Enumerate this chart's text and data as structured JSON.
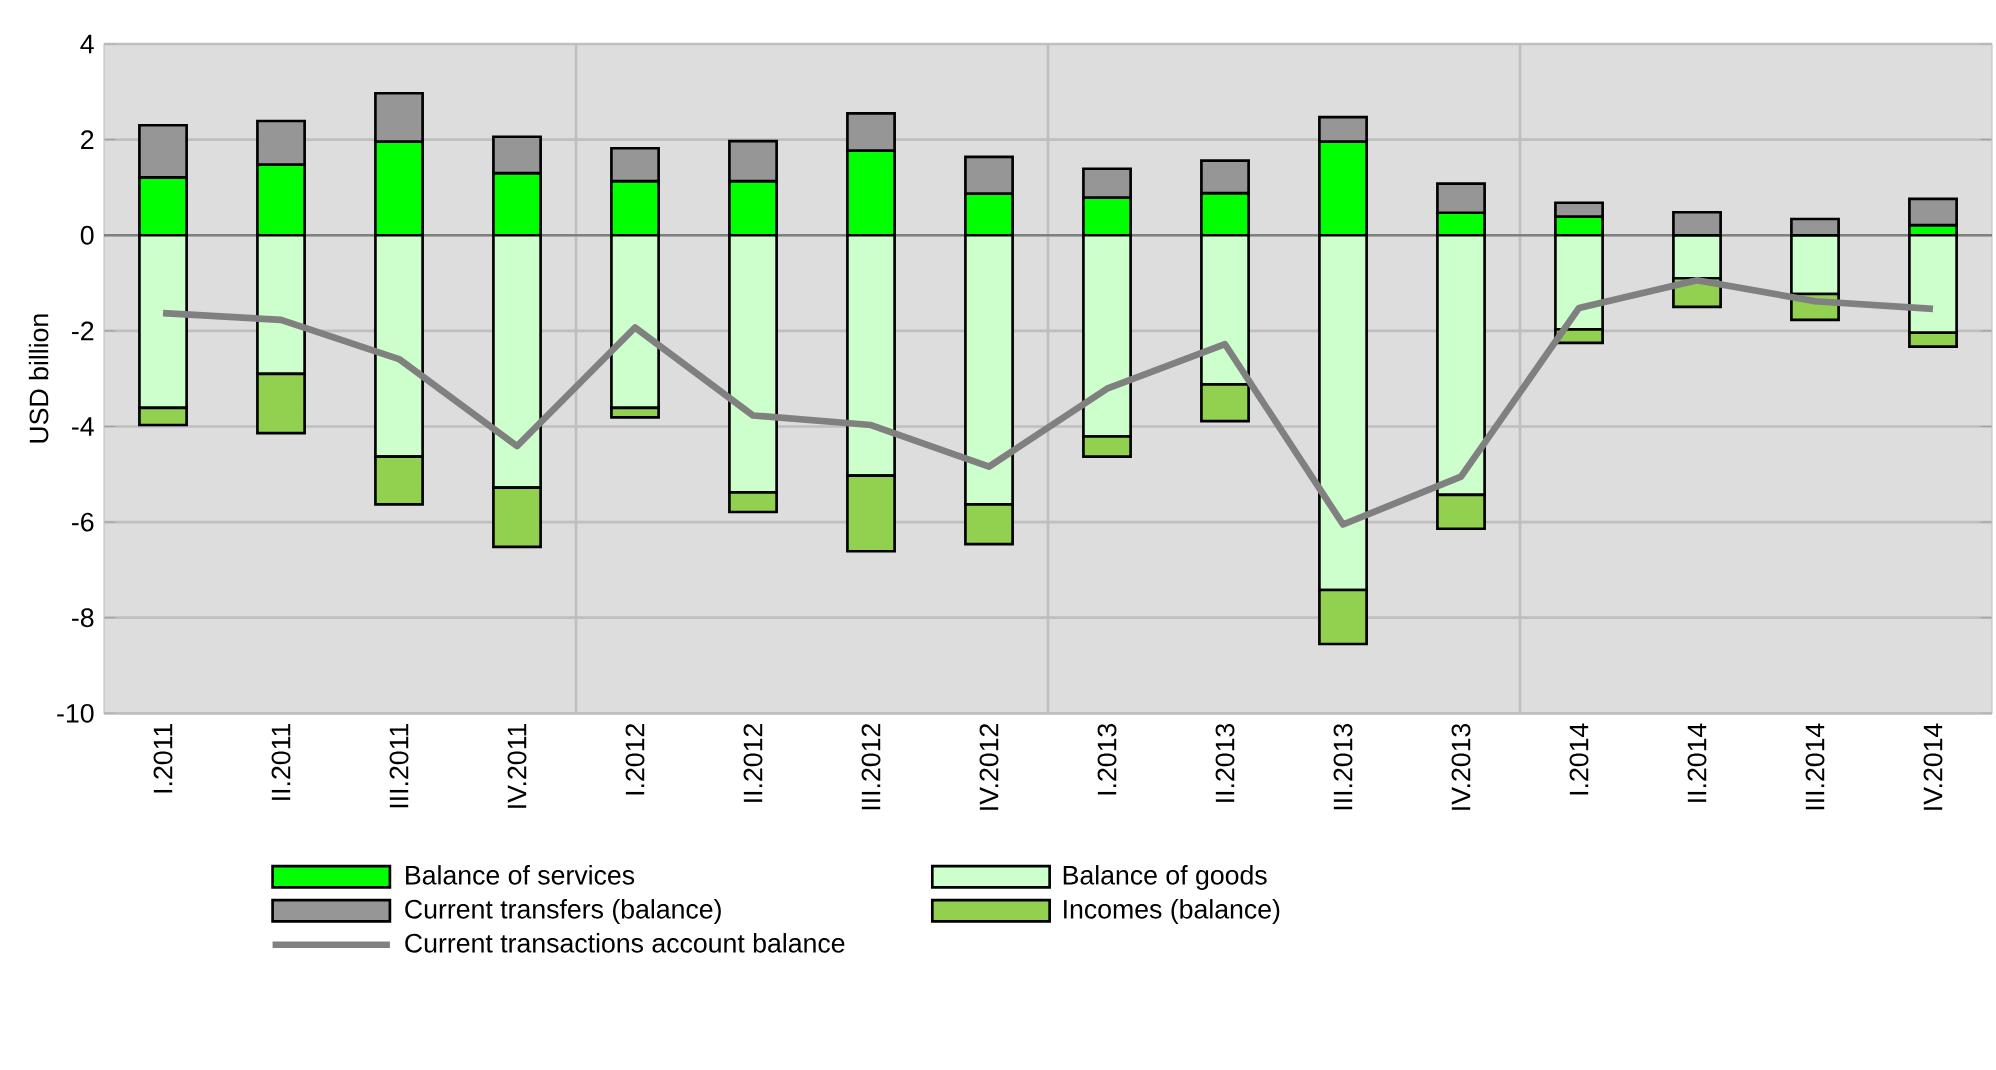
{
  "chart_data": {
    "type": "bar",
    "stacked": true,
    "ylabel": "USD billion",
    "categories": [
      "I.2011",
      "II.2011",
      "III.2011",
      "IV.2011",
      "I.2012",
      "II.2012",
      "III.2012",
      "IV.2012",
      "I.2013",
      "II.2013",
      "III.2013",
      "IV.2013",
      "I.2014",
      "II.2014",
      "III.2014",
      "IV.2014"
    ],
    "series": [
      {
        "name": "Balance of services",
        "color": "#00ff00",
        "values": [
          1.21,
          1.48,
          1.96,
          1.3,
          1.13,
          1.13,
          1.77,
          0.87,
          0.79,
          0.88,
          1.96,
          0.47,
          0.39,
          0,
          0,
          0.21
        ]
      },
      {
        "name": "Balance of goods",
        "color": "#ccffcc",
        "values": [
          -3.61,
          -2.9,
          -4.63,
          -5.28,
          -3.61,
          -5.38,
          -5.03,
          -5.63,
          -4.21,
          -3.12,
          -7.42,
          -5.43,
          -1.97,
          -0.9,
          -1.23,
          -2.04
        ]
      },
      {
        "name": "Current transfers (balance)",
        "color": "#969696",
        "values": [
          1.09,
          0.91,
          1.01,
          0.76,
          0.69,
          0.84,
          0.78,
          0.77,
          0.6,
          0.68,
          0.51,
          0.61,
          0.29,
          0.48,
          0.34,
          0.55
        ]
      },
      {
        "name": "Incomes (balance)",
        "color": "#92d050",
        "values": [
          -0.36,
          -1.24,
          -1.0,
          -1.24,
          -0.2,
          -0.41,
          -1.58,
          -0.83,
          -0.42,
          -0.77,
          -1.13,
          -0.71,
          -0.28,
          -0.6,
          -0.54,
          -0.29
        ]
      },
      {
        "name": "Current transactions account balance",
        "type": "line",
        "color": "#808080",
        "values": [
          -1.63,
          -1.77,
          -2.59,
          -4.41,
          -1.93,
          -3.77,
          -3.97,
          -4.84,
          -3.21,
          -2.28,
          -6.05,
          -5.05,
          -1.52,
          -0.94,
          -1.38,
          -1.54
        ]
      }
    ],
    "ylim": [
      -10,
      4
    ],
    "yticks": [
      -10,
      -8,
      -6,
      -4,
      -2,
      0,
      2,
      4
    ],
    "grid": true,
    "legend": "bottom"
  }
}
